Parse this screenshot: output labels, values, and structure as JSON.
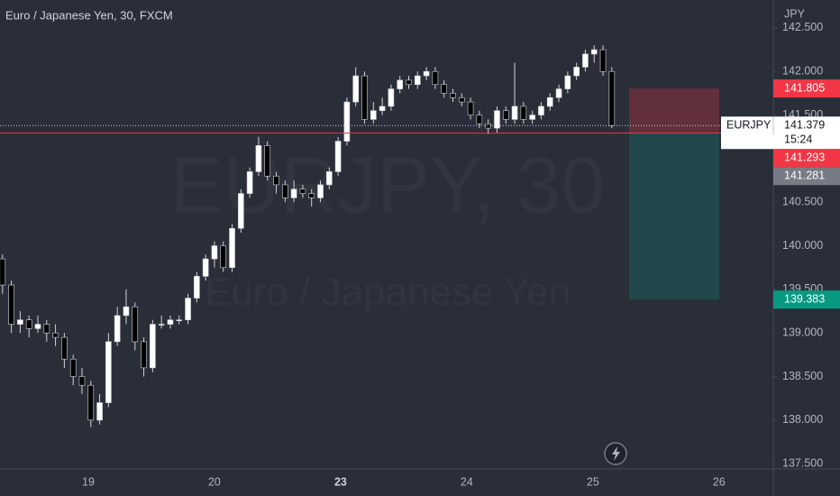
{
  "header": {
    "title": "Euro / Japanese Yen, 30, FXCM"
  },
  "watermark": {
    "symbol": "EURJPY, 30",
    "description": "Euro / Japanese Yen"
  },
  "chart_data": {
    "type": "candlestick",
    "currency": "JPY",
    "x": [
      -0.68,
      -0.61,
      -0.54,
      -0.47,
      -0.4,
      -0.33,
      -0.26,
      -0.19,
      -0.12,
      -0.05,
      0.02,
      0.09,
      0.16,
      0.23,
      0.3,
      0.37,
      0.44,
      0.51,
      0.58,
      0.65,
      0.72,
      0.79,
      0.86,
      0.93,
      1.0,
      1.07,
      1.14,
      1.21,
      1.28,
      1.35,
      1.42,
      1.49,
      1.56,
      1.63,
      1.7,
      1.77,
      1.84,
      1.91,
      1.98,
      2.05,
      2.12,
      2.19,
      2.26,
      2.33,
      2.4,
      2.47,
      2.54,
      2.61,
      2.68,
      2.75,
      2.82,
      2.89,
      2.96,
      3.03,
      3.1,
      3.17,
      3.24,
      3.31,
      3.38,
      3.45,
      3.52,
      3.59,
      3.66,
      3.73,
      3.8,
      3.87,
      3.94,
      4.01,
      4.08,
      4.15
    ],
    "ohlc": [
      [
        139.85,
        139.9,
        139.45,
        139.55
      ],
      [
        139.55,
        139.6,
        139.0,
        139.1
      ],
      [
        139.1,
        139.25,
        139.0,
        139.15
      ],
      [
        139.15,
        139.2,
        138.95,
        139.05
      ],
      [
        139.05,
        139.2,
        139.0,
        139.1
      ],
      [
        139.1,
        139.15,
        138.9,
        139.0
      ],
      [
        139.0,
        139.1,
        138.85,
        138.95
      ],
      [
        138.95,
        139.0,
        138.6,
        138.7
      ],
      [
        138.7,
        138.75,
        138.4,
        138.5
      ],
      [
        138.5,
        138.6,
        138.3,
        138.4
      ],
      [
        138.4,
        138.45,
        137.92,
        138.0
      ],
      [
        138.0,
        138.3,
        137.95,
        138.2
      ],
      [
        138.2,
        139.0,
        138.15,
        138.9
      ],
      [
        138.9,
        139.3,
        138.85,
        139.2
      ],
      [
        139.2,
        139.5,
        139.1,
        139.3
      ],
      [
        139.3,
        139.35,
        138.8,
        138.9
      ],
      [
        138.9,
        138.95,
        138.5,
        138.6
      ],
      [
        138.6,
        139.15,
        138.55,
        139.1
      ],
      [
        139.1,
        139.2,
        139.05,
        139.1
      ],
      [
        139.1,
        139.2,
        139.05,
        139.15
      ],
      [
        139.15,
        139.2,
        139.1,
        139.15
      ],
      [
        139.15,
        139.45,
        139.1,
        139.4
      ],
      [
        139.4,
        139.7,
        139.35,
        139.65
      ],
      [
        139.65,
        139.9,
        139.6,
        139.85
      ],
      [
        139.85,
        140.05,
        139.75,
        140.0
      ],
      [
        140.0,
        140.05,
        139.7,
        139.75
      ],
      [
        139.75,
        140.25,
        139.7,
        140.2
      ],
      [
        140.2,
        140.65,
        140.15,
        140.6
      ],
      [
        140.6,
        140.9,
        140.55,
        140.85
      ],
      [
        140.85,
        141.25,
        140.8,
        141.15
      ],
      [
        141.15,
        141.2,
        140.75,
        140.8
      ],
      [
        140.8,
        140.85,
        140.6,
        140.7
      ],
      [
        140.7,
        140.75,
        140.5,
        140.55
      ],
      [
        140.55,
        140.75,
        140.5,
        140.65
      ],
      [
        140.65,
        140.7,
        140.55,
        140.6
      ],
      [
        140.6,
        140.65,
        140.45,
        140.55
      ],
      [
        140.55,
        140.75,
        140.5,
        140.7
      ],
      [
        140.7,
        140.9,
        140.65,
        140.85
      ],
      [
        140.85,
        141.25,
        140.8,
        141.2
      ],
      [
        141.2,
        141.7,
        141.15,
        141.65
      ],
      [
        141.65,
        142.05,
        141.6,
        141.95
      ],
      [
        141.95,
        142.0,
        141.4,
        141.45
      ],
      [
        141.45,
        141.65,
        141.4,
        141.55
      ],
      [
        141.55,
        141.7,
        141.5,
        141.6
      ],
      [
        141.6,
        141.85,
        141.55,
        141.8
      ],
      [
        141.8,
        141.95,
        141.75,
        141.9
      ],
      [
        141.9,
        141.95,
        141.8,
        141.85
      ],
      [
        141.85,
        142.0,
        141.8,
        141.95
      ],
      [
        141.95,
        142.05,
        141.9,
        142.0
      ],
      [
        142.0,
        142.05,
        141.8,
        141.85
      ],
      [
        141.85,
        141.9,
        141.7,
        141.75
      ],
      [
        141.75,
        141.8,
        141.65,
        141.7
      ],
      [
        141.7,
        141.75,
        141.6,
        141.65
      ],
      [
        141.65,
        141.7,
        141.45,
        141.5
      ],
      [
        141.5,
        141.55,
        141.35,
        141.4
      ],
      [
        141.4,
        141.45,
        141.28,
        141.35
      ],
      [
        141.35,
        141.6,
        141.3,
        141.55
      ],
      [
        141.55,
        141.6,
        141.4,
        141.45
      ],
      [
        141.45,
        142.1,
        141.4,
        141.6
      ],
      [
        141.6,
        141.65,
        141.4,
        141.45
      ],
      [
        141.45,
        141.55,
        141.4,
        141.5
      ],
      [
        141.5,
        141.65,
        141.45,
        141.6
      ],
      [
        141.6,
        141.75,
        141.55,
        141.7
      ],
      [
        141.7,
        141.85,
        141.65,
        141.8
      ],
      [
        141.8,
        142.0,
        141.75,
        141.95
      ],
      [
        141.95,
        142.1,
        141.9,
        142.05
      ],
      [
        142.05,
        142.25,
        142.0,
        142.2
      ],
      [
        142.2,
        142.3,
        142.1,
        142.25
      ],
      [
        142.25,
        142.3,
        141.95,
        142.0
      ],
      [
        142.0,
        142.05,
        141.35,
        141.38
      ]
    ],
    "up_color": "#ffffff",
    "down_color": "#000000",
    "xlim": [
      -0.7,
      5.43
    ],
    "xticks": [
      {
        "value": 0,
        "label": "19"
      },
      {
        "value": 1,
        "label": "20"
      },
      {
        "value": 2,
        "label": "23"
      },
      {
        "value": 3,
        "label": "24"
      },
      {
        "value": 4,
        "label": "25"
      },
      {
        "value": 5,
        "label": "26"
      }
    ],
    "ylim": [
      137.44,
      142.82
    ],
    "yticks": [
      {
        "value": 137.5,
        "label": "137.500"
      },
      {
        "value": 138,
        "label": "138.000"
      },
      {
        "value": 138.5,
        "label": "138.500"
      },
      {
        "value": 139,
        "label": "139.000"
      },
      {
        "value": 139.5,
        "label": "139.500"
      },
      {
        "value": 140,
        "label": "140.000"
      },
      {
        "value": 140.5,
        "label": "140.500"
      },
      {
        "value": 141,
        "label": "141.000"
      },
      {
        "value": 141.5,
        "label": "141.500"
      },
      {
        "value": 142,
        "label": "142.000"
      },
      {
        "value": 142.5,
        "label": "142.500"
      }
    ],
    "last_price": {
      "symbol": "EURJPY",
      "value": 141.379,
      "countdown": "15:24"
    },
    "price_labels": [
      {
        "value": 141.805,
        "color": "#f23645"
      },
      {
        "value": 141.293,
        "color": "#f23645"
      },
      {
        "value": 141.281,
        "color": "#787b86"
      },
      {
        "value": 139.383,
        "color": "#089981"
      }
    ]
  }
}
